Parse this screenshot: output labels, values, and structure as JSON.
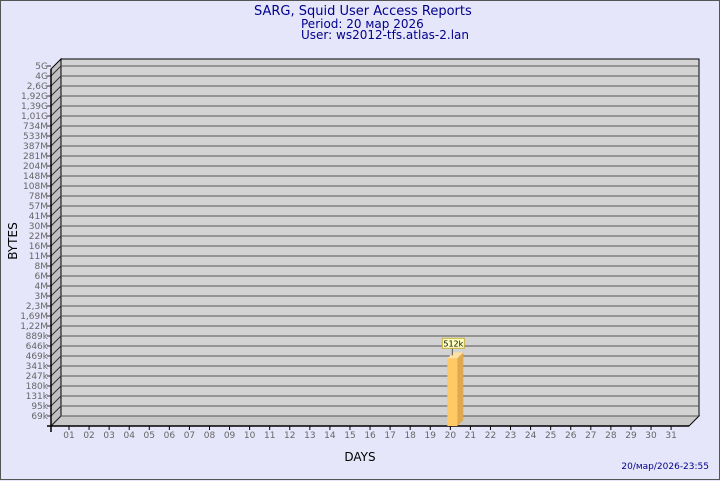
{
  "header": {
    "title": "SARG, Squid User Access Reports",
    "period": "Period: 20 мар 2026",
    "user": "User: ws2012-tfs.atlas-2.lan"
  },
  "timestamp": "20/мар/2026-23:55",
  "colors": {
    "background": "#e6e6fa",
    "plot": "#d3d3d3",
    "bar": "#ffc966",
    "bar_side": "#e0a850",
    "title": "#00008b"
  },
  "chart_data": {
    "type": "bar",
    "xlabel": "DAYS",
    "ylabel": "BYTES",
    "y_scale": "log",
    "grid": true,
    "y_ticks": [
      "5G",
      "4G",
      "2,6G",
      "1,92G",
      "1,39G",
      "1,01G",
      "734M",
      "533M",
      "387M",
      "281M",
      "204M",
      "148M",
      "108M",
      "78M",
      "57M",
      "41M",
      "30M",
      "22M",
      "16M",
      "11M",
      "8M",
      "6M",
      "4M",
      "3M",
      "2,3M",
      "1,69M",
      "1,22M",
      "889k",
      "646k",
      "469k",
      "341k",
      "247k",
      "180k",
      "131k",
      "95k",
      "69k"
    ],
    "categories": [
      "01",
      "02",
      "03",
      "04",
      "05",
      "06",
      "07",
      "08",
      "09",
      "10",
      "11",
      "12",
      "13",
      "14",
      "15",
      "16",
      "17",
      "18",
      "19",
      "20",
      "21",
      "22",
      "23",
      "24",
      "25",
      "26",
      "27",
      "28",
      "29",
      "30",
      "31"
    ],
    "values": [
      0,
      0,
      0,
      0,
      0,
      0,
      0,
      0,
      0,
      0,
      0,
      0,
      0,
      0,
      0,
      0,
      0,
      0,
      0,
      512000,
      0,
      0,
      0,
      0,
      0,
      0,
      0,
      0,
      0,
      0,
      0
    ],
    "data_labels": {
      "20": "512k"
    }
  }
}
